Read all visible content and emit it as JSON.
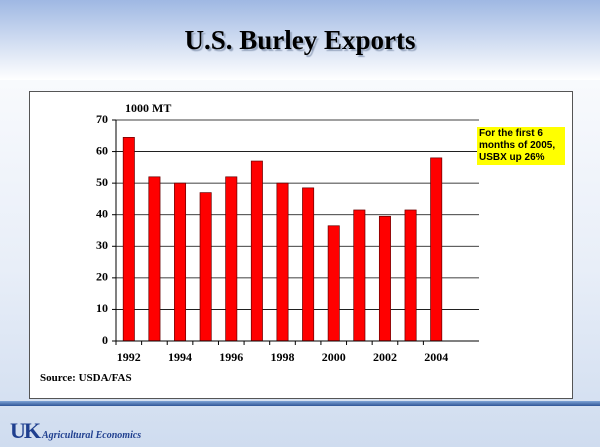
{
  "title": "U.S. Burley Exports",
  "chart_data": {
    "type": "bar",
    "y_label": "1000 MT",
    "categories": [
      "1992",
      null,
      "1994",
      null,
      "1996",
      null,
      "1998",
      null,
      "2000",
      null,
      "2002",
      null,
      "2004"
    ],
    "values": [
      64.5,
      52,
      50,
      47,
      52,
      57,
      50,
      48.5,
      36.5,
      41.5,
      39.5,
      41.5,
      58
    ],
    "color": "#ff0000",
    "ylim": [
      0,
      70
    ],
    "yticks": [
      0,
      10,
      20,
      30,
      40,
      50,
      60,
      70
    ],
    "grid": true,
    "annotation": "For the first 6 months of 2005,  USBX up 26%",
    "source": "Source: USDA/FAS"
  },
  "footer": {
    "logo": "UK",
    "department": "Agricultural Economics"
  }
}
